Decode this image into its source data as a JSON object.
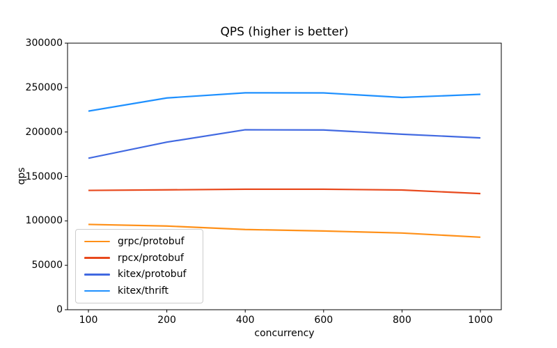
{
  "chart_data": {
    "type": "line",
    "title": "QPS (higher is better)",
    "xlabel": "concurrency",
    "ylabel": "qps",
    "x_categories": [
      "100",
      "200",
      "400",
      "600",
      "800",
      "1000"
    ],
    "x_spacing": "categorical-even",
    "ylim": [
      0,
      300000
    ],
    "yticks": [
      0,
      50000,
      100000,
      150000,
      200000,
      250000,
      300000
    ],
    "ytick_labels": [
      "0",
      "50000",
      "100000",
      "150000",
      "200000",
      "250000",
      "300000"
    ],
    "grid": false,
    "frame": "full-box",
    "legend_position": "lower-left-inside",
    "axis_color": "#000000",
    "series": [
      {
        "name": "grpc/protobuf",
        "color": "#ff9018",
        "values": [
          96000,
          94200,
          90300,
          88600,
          86300,
          81600
        ]
      },
      {
        "name": "rpcx/protobuf",
        "color": "#e8491d",
        "values": [
          134300,
          134900,
          135600,
          135600,
          134700,
          130700
        ]
      },
      {
        "name": "kitex/protobuf",
        "color": "#4169e1",
        "values": [
          170500,
          188600,
          202500,
          202300,
          197500,
          193400
        ]
      },
      {
        "name": "kitex/thrift",
        "color": "#1e90ff",
        "values": [
          223500,
          238300,
          244100,
          244000,
          238900,
          242400
        ]
      }
    ]
  }
}
